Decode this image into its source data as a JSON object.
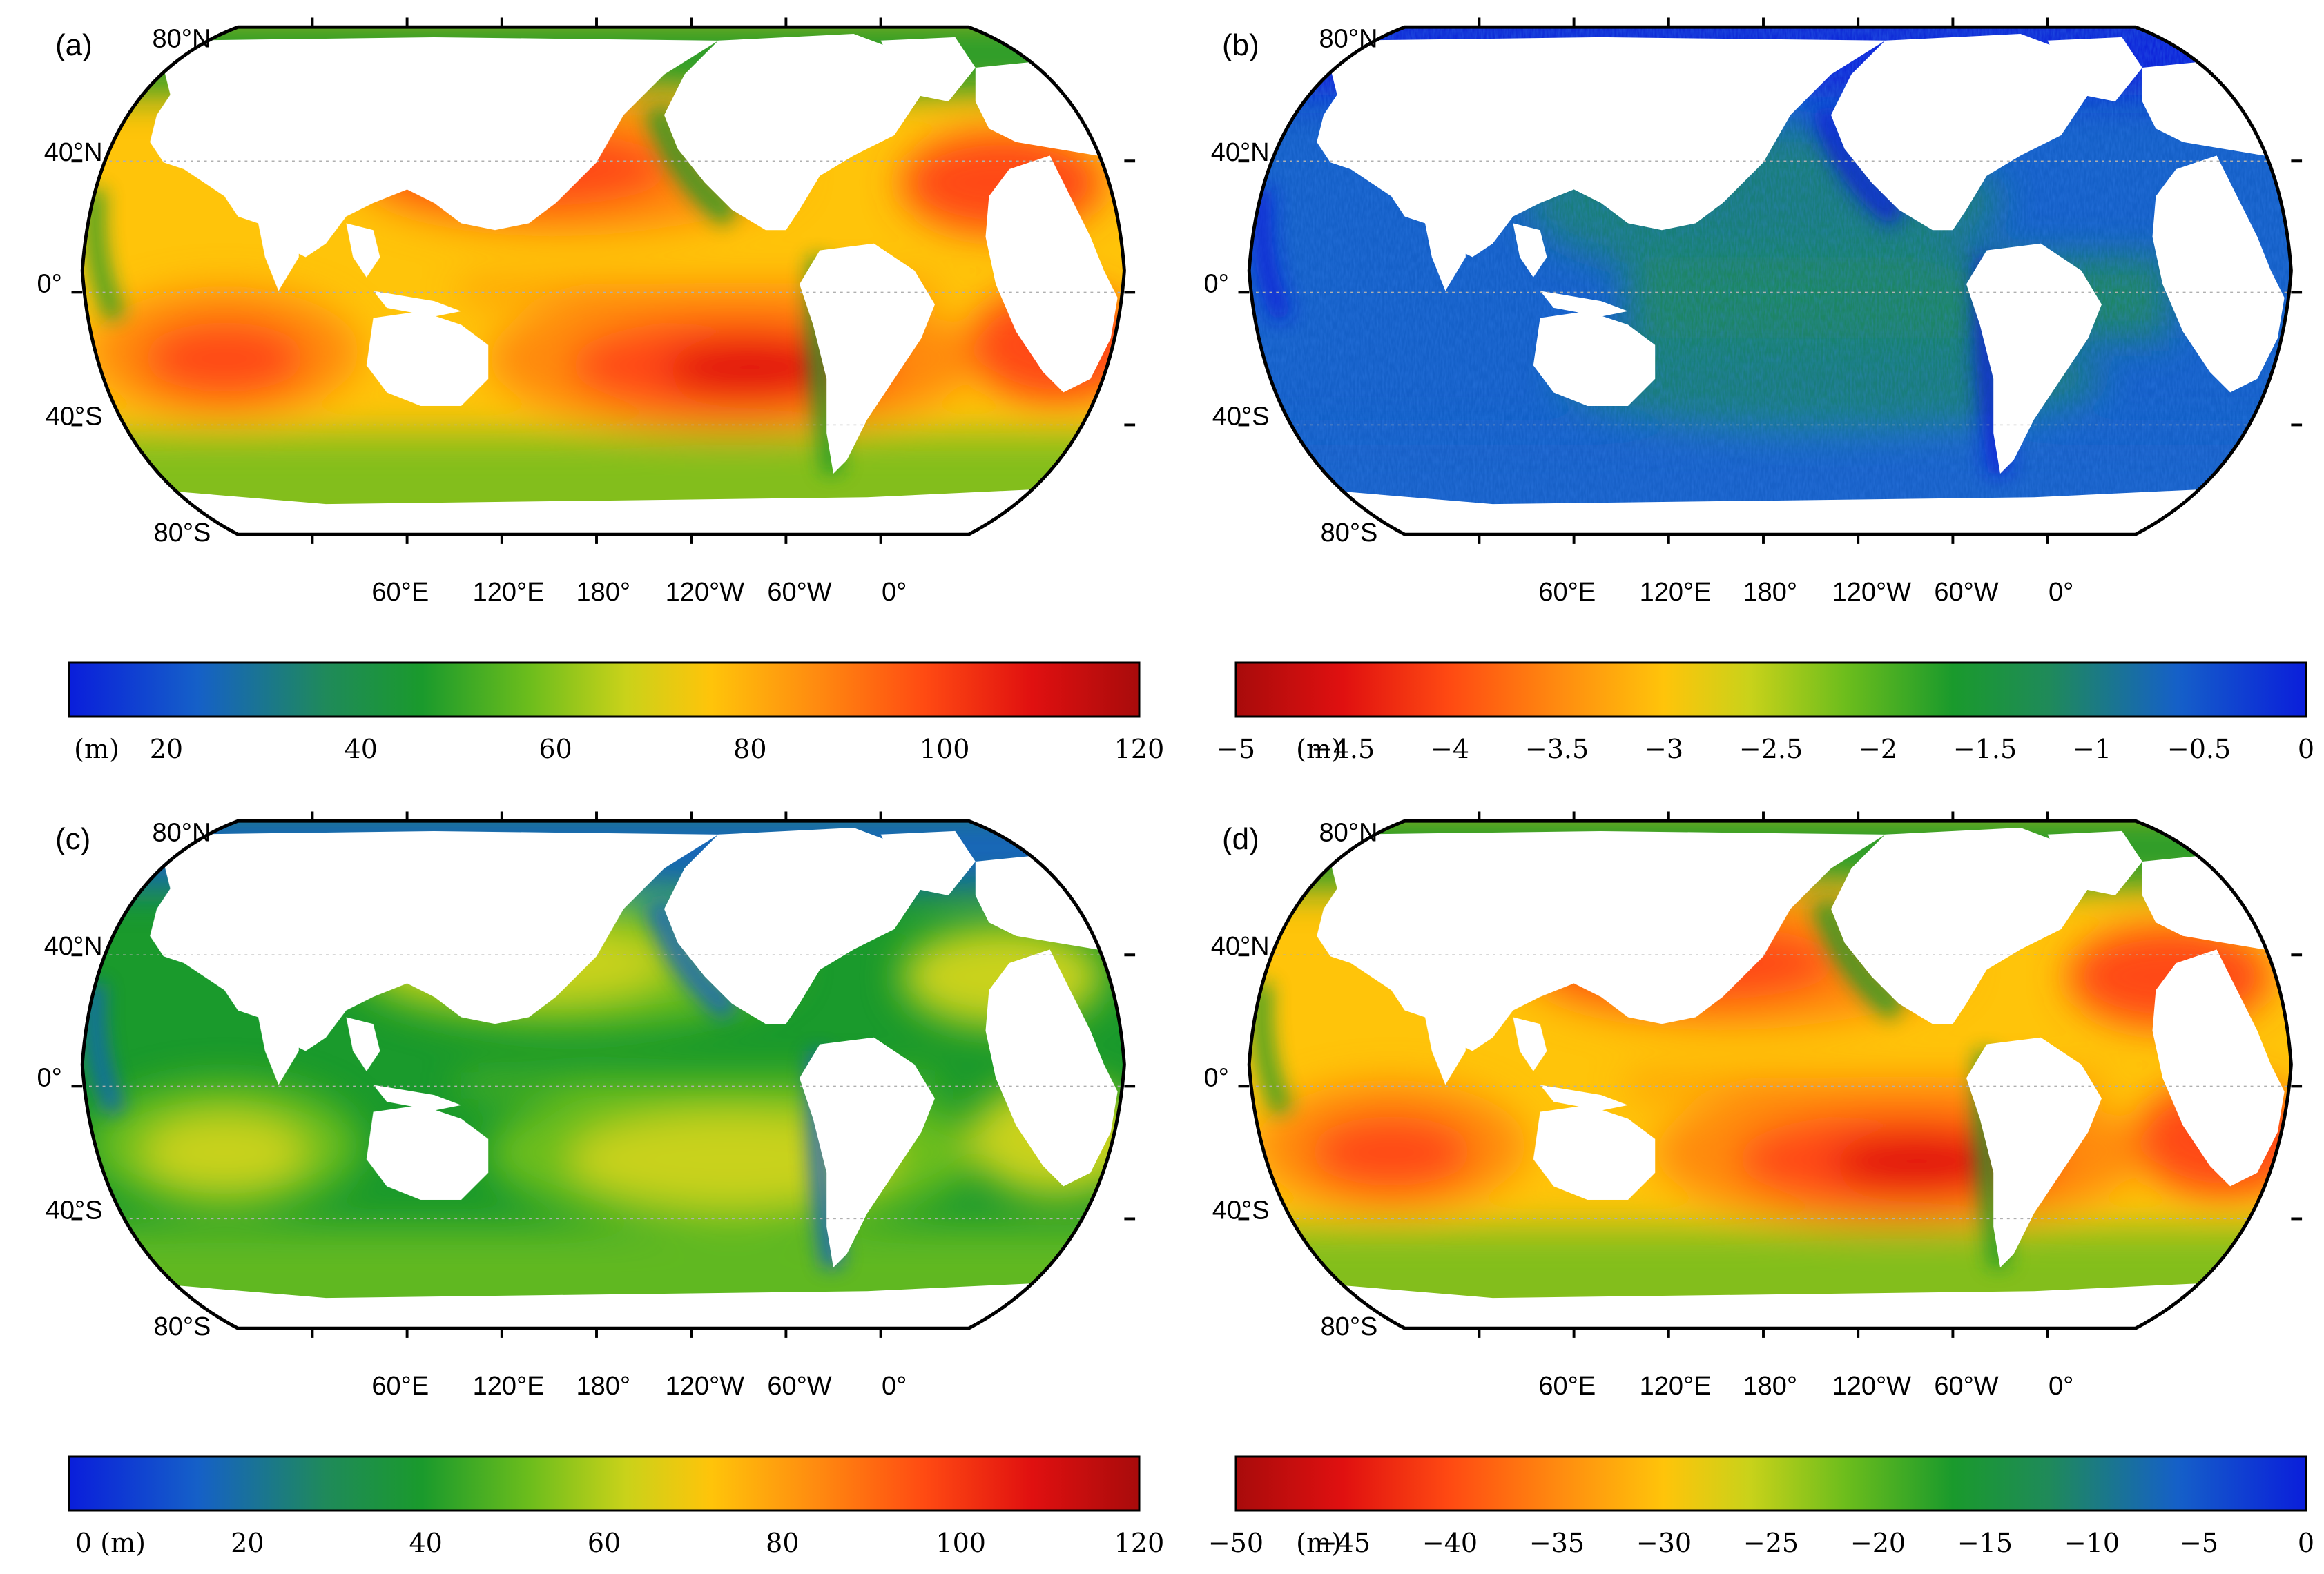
{
  "panels": [
    {
      "letter": "(a)",
      "scheme": "sequential",
      "lat_labels": [
        "80°N",
        "40°N",
        "0°",
        "40°S",
        "80°S"
      ],
      "lon_labels": [
        "60°E",
        "120°E",
        "180°",
        "120°W",
        "60°W",
        "0°"
      ],
      "colorbar": {
        "range": [
          10,
          120
        ],
        "direction": "blue-to-red",
        "ticks": [
          "(m)",
          "20",
          "40",
          "60",
          "80",
          "100",
          "120"
        ]
      }
    },
    {
      "letter": "(b)",
      "scheme": "negative-small",
      "lat_labels": [
        "80°N",
        "40°N",
        "0°",
        "40°S",
        "80°S"
      ],
      "lon_labels": [
        "60°E",
        "120°E",
        "180°",
        "120°W",
        "60°W",
        "0°"
      ],
      "colorbar": {
        "range": [
          -5,
          0
        ],
        "direction": "red-to-blue",
        "ticks": [
          "−5",
          "(m)",
          "−4.5",
          "−4",
          "−3.5",
          "−3",
          "−2.5",
          "−2",
          "−1.5",
          "−1",
          "−0.5",
          "0"
        ]
      }
    },
    {
      "letter": "(c)",
      "scheme": "moderate",
      "lat_labels": [
        "80°N",
        "40°N",
        "0°",
        "40°S",
        "80°S"
      ],
      "lon_labels": [
        "60°E",
        "120°E",
        "180°",
        "120°W",
        "60°W",
        "0°"
      ],
      "colorbar": {
        "range": [
          0,
          120
        ],
        "direction": "blue-to-red",
        "ticks": [
          "0 (m)",
          "20",
          "40",
          "60",
          "80",
          "100",
          "120"
        ]
      }
    },
    {
      "letter": "(d)",
      "scheme": "negative-large",
      "lat_labels": [
        "80°N",
        "40°N",
        "0°",
        "40°S",
        "80°S"
      ],
      "lon_labels": [
        "60°E",
        "120°E",
        "180°",
        "120°W",
        "60°W",
        "0°"
      ],
      "colorbar": {
        "range": [
          -50,
          0
        ],
        "direction": "red-to-blue",
        "ticks": [
          "−50",
          "(m)",
          "−45",
          "−40",
          "−35",
          "−30",
          "−25",
          "−20",
          "−15",
          "−10",
          "−5",
          "0"
        ]
      }
    }
  ],
  "colors": {
    "colormap": [
      "#0a1edb",
      "#1560c8",
      "#1f8a5a",
      "#1a9a2c",
      "#6cbd1c",
      "#c9d21a",
      "#ffc40a",
      "#ff8a10",
      "#ff4a12",
      "#e01010",
      "#a80b0b"
    ],
    "land": "#ffffff",
    "coast": "#000000"
  }
}
